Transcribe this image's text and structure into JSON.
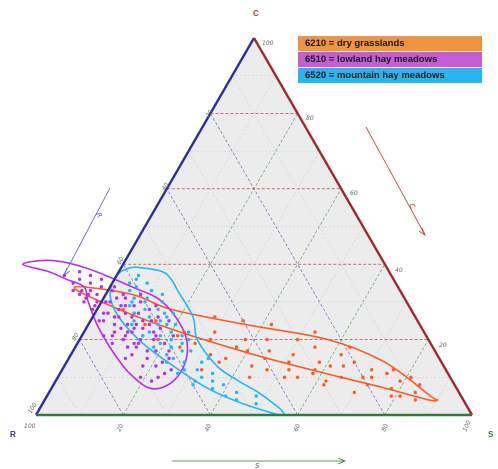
{
  "chart_data": {
    "type": "scatter",
    "subtype": "ternary",
    "title": "",
    "corners": {
      "left": "R",
      "top": "C",
      "right": "S"
    },
    "axis_titles": {
      "left_edge": "R",
      "right_edge": "C",
      "bottom_edge": "S"
    },
    "scale_max": 100,
    "left_edge_ticks": [
      "20",
      "40",
      "60",
      "80",
      "100"
    ],
    "right_edge_ticks": [
      "100",
      "80",
      "60",
      "40",
      "20"
    ],
    "bottom_edge_ticks": [
      "100",
      "20",
      "40",
      "60",
      "80",
      "100"
    ],
    "colors": {
      "C": "#c0392b",
      "R": "#2e2ea0",
      "S": "#2e7d32",
      "grid_c": "#a52a2a",
      "grid_r": "#5b5bb8",
      "grid_s": "#4e9a4e",
      "face": "#ececec",
      "edge_c": "#9e2b2b",
      "edge_r": "#2e2ea0",
      "edge_s": "#2e7d32"
    },
    "legend_position": "top-right",
    "series": [
      {
        "name": "6210 = dry grasslands",
        "color": "#ff5a1f",
        "legend_color": "#f0943f",
        "envelope": [
          [
            74,
            34
          ],
          [
            62,
            32
          ],
          [
            55,
            28
          ],
          [
            40,
            24
          ],
          [
            23,
            20
          ],
          [
            13,
            14
          ],
          [
            7,
            5
          ],
          [
            6,
            4
          ],
          [
            8,
            4
          ],
          [
            16,
            7
          ],
          [
            28,
            11
          ],
          [
            42,
            16
          ],
          [
            58,
            23
          ],
          [
            70,
            30
          ]
        ],
        "points": [
          [
            60,
            25
          ],
          [
            55,
            22
          ],
          [
            50,
            20
          ],
          [
            45,
            18
          ],
          [
            40,
            15
          ],
          [
            38,
            17
          ],
          [
            35,
            14
          ],
          [
            30,
            12
          ],
          [
            28,
            14
          ],
          [
            25,
            10
          ],
          [
            20,
            8
          ],
          [
            18,
            10
          ],
          [
            15,
            7
          ],
          [
            12,
            9
          ],
          [
            10,
            6
          ],
          [
            42,
            20
          ],
          [
            48,
            22
          ],
          [
            33,
            16
          ],
          [
            27,
            18
          ],
          [
            22,
            16
          ],
          [
            20,
            14
          ],
          [
            17,
            12
          ],
          [
            14,
            11
          ],
          [
            36,
            12
          ],
          [
            44,
            13
          ],
          [
            52,
            16
          ],
          [
            58,
            18
          ],
          [
            63,
            24
          ],
          [
            66,
            28
          ],
          [
            30,
            20
          ],
          [
            25,
            22
          ],
          [
            40,
            25
          ],
          [
            46,
            26
          ],
          [
            34,
            24
          ],
          [
            38,
            10
          ],
          [
            30,
            8
          ],
          [
            24,
            6
          ],
          [
            16,
            5
          ],
          [
            20,
            10
          ],
          [
            12,
            12
          ],
          [
            9,
            10
          ],
          [
            26,
            13
          ],
          [
            31,
            11
          ],
          [
            37,
            20
          ],
          [
            43,
            17
          ],
          [
            49,
            15
          ],
          [
            54,
            19
          ],
          [
            57,
            21
          ],
          [
            62,
            20
          ],
          [
            19,
            18
          ],
          [
            23,
            13
          ],
          [
            29,
            9
          ],
          [
            35,
            10
          ],
          [
            41,
            12
          ],
          [
            46,
            10
          ],
          [
            51,
            14
          ],
          [
            56,
            12
          ],
          [
            8,
            8
          ],
          [
            11,
            4
          ],
          [
            14,
            5
          ]
        ]
      },
      {
        "name": "6510 = lowland hay meadows",
        "color": "#bb2ef0",
        "legend_color": "#c35ed6",
        "envelope": [
          [
            83,
            40
          ],
          [
            78,
            38
          ],
          [
            75,
            36
          ],
          [
            72,
            34
          ],
          [
            73,
            30
          ],
          [
            74,
            24
          ],
          [
            74,
            17
          ],
          [
            73,
            11
          ],
          [
            70,
            7
          ],
          [
            64,
            9
          ],
          [
            58,
            15
          ],
          [
            55,
            22
          ],
          [
            56,
            30
          ],
          [
            61,
            34
          ],
          [
            69,
            39
          ],
          [
            76,
            41
          ]
        ],
        "points": [
          [
            75,
            33
          ],
          [
            74,
            30
          ],
          [
            73,
            28
          ],
          [
            72,
            25
          ],
          [
            71,
            22
          ],
          [
            70,
            20
          ],
          [
            68,
            18
          ],
          [
            67,
            15
          ],
          [
            66,
            13
          ],
          [
            65,
            11
          ],
          [
            64,
            17
          ],
          [
            63,
            20
          ],
          [
            62,
            22
          ],
          [
            61,
            25
          ],
          [
            60,
            28
          ],
          [
            61,
            30
          ],
          [
            64,
            31
          ],
          [
            66,
            29
          ],
          [
            68,
            26
          ],
          [
            69,
            23
          ],
          [
            70,
            27
          ],
          [
            71,
            30
          ],
          [
            73,
            33
          ],
          [
            74,
            35
          ],
          [
            75,
            37
          ],
          [
            72,
            36
          ],
          [
            70,
            35
          ],
          [
            68,
            34
          ],
          [
            66,
            33
          ],
          [
            64,
            32
          ],
          [
            72,
            21
          ],
          [
            70,
            16
          ],
          [
            69,
            13
          ],
          [
            67,
            19
          ],
          [
            66,
            23
          ],
          [
            65,
            26
          ],
          [
            63,
            27
          ],
          [
            62,
            24
          ],
          [
            64,
            14
          ],
          [
            63,
            12
          ],
          [
            61,
            19
          ],
          [
            60,
            23
          ],
          [
            59,
            26
          ],
          [
            58,
            21
          ],
          [
            71,
            10
          ],
          [
            69,
            9
          ],
          [
            67,
            10
          ],
          [
            66,
            17
          ],
          [
            65,
            21
          ],
          [
            67,
            28
          ],
          [
            69,
            30
          ],
          [
            71,
            33
          ],
          [
            73,
            31
          ],
          [
            72,
            29
          ],
          [
            71,
            27
          ],
          [
            70,
            24
          ],
          [
            69,
            21
          ],
          [
            68,
            19
          ],
          [
            67,
            24
          ],
          [
            66,
            27
          ],
          [
            65,
            29
          ],
          [
            64,
            27
          ],
          [
            63,
            25
          ],
          [
            62,
            21
          ],
          [
            61,
            17
          ],
          [
            62,
            15
          ],
          [
            64,
            23
          ],
          [
            66,
            20
          ],
          [
            68,
            22
          ],
          [
            70,
            18
          ],
          [
            72,
            15
          ],
          [
            73,
            19
          ],
          [
            74,
            21
          ],
          [
            73,
            25
          ],
          [
            72,
            32
          ],
          [
            70,
            32
          ],
          [
            68,
            30
          ],
          [
            66,
            31
          ],
          [
            65,
            34
          ],
          [
            67,
            36
          ],
          [
            69,
            37
          ],
          [
            71,
            38
          ],
          [
            74,
            32
          ],
          [
            69,
            26
          ],
          [
            67,
            22
          ],
          [
            65,
            24
          ],
          [
            63,
            29
          ],
          [
            62,
            31
          ],
          [
            60,
            32
          ],
          [
            58,
            29
          ],
          [
            57,
            25
          ],
          [
            59,
            20
          ]
        ]
      },
      {
        "name": "6520 = mountain hay meadows",
        "color": "#1fb8ff",
        "legend_color": "#29b6ee",
        "envelope": [
          [
            56,
            39
          ],
          [
            52,
            38
          ],
          [
            51,
            36
          ],
          [
            51,
            33
          ],
          [
            51,
            26
          ],
          [
            53,
            20
          ],
          [
            52,
            13
          ],
          [
            49,
            9
          ],
          [
            46,
            6
          ],
          [
            44,
            3
          ],
          [
            43,
            1
          ],
          [
            44,
            0
          ],
          [
            51,
            3
          ],
          [
            57,
            7
          ],
          [
            62,
            13
          ],
          [
            66,
            19
          ],
          [
            68,
            26
          ],
          [
            67,
            32
          ],
          [
            63,
            37
          ],
          [
            59,
            39
          ]
        ],
        "points": [
          [
            58,
            37
          ],
          [
            57,
            33
          ],
          [
            56,
            30
          ],
          [
            57,
            27
          ],
          [
            56,
            24
          ],
          [
            55,
            20
          ],
          [
            56,
            17
          ],
          [
            55,
            14
          ],
          [
            54,
            11
          ],
          [
            53,
            8
          ],
          [
            57,
            12
          ],
          [
            58,
            17
          ],
          [
            59,
            20
          ],
          [
            60,
            24
          ],
          [
            61,
            28
          ],
          [
            59,
            31
          ],
          [
            60,
            34
          ],
          [
            62,
            33
          ],
          [
            63,
            30
          ],
          [
            64,
            27
          ],
          [
            65,
            25
          ],
          [
            63,
            22
          ],
          [
            62,
            19
          ],
          [
            61,
            15
          ],
          [
            60,
            12
          ],
          [
            59,
            9
          ],
          [
            56,
            7
          ],
          [
            54,
            5
          ],
          [
            52,
            4
          ],
          [
            51,
            6
          ],
          [
            53,
            15
          ],
          [
            54,
            22
          ],
          [
            55,
            27
          ],
          [
            55,
            32
          ],
          [
            57,
            35
          ],
          [
            59,
            36
          ],
          [
            61,
            35
          ],
          [
            62,
            31
          ],
          [
            64,
            29
          ],
          [
            66,
            24
          ],
          [
            65,
            21
          ],
          [
            64,
            18
          ],
          [
            62,
            16
          ],
          [
            60,
            18
          ],
          [
            58,
            22
          ],
          [
            57,
            26
          ],
          [
            58,
            28
          ],
          [
            60,
            30
          ],
          [
            61,
            21
          ],
          [
            59,
            14
          ],
          [
            57,
            10
          ],
          [
            55,
            9
          ],
          [
            60,
            8
          ],
          [
            62,
            11
          ],
          [
            63,
            14
          ],
          [
            61,
            26
          ],
          [
            59,
            25
          ],
          [
            58,
            24
          ],
          [
            57,
            19
          ],
          [
            56,
            21
          ],
          [
            48,
            3
          ],
          [
            47,
            5
          ]
        ]
      }
    ]
  }
}
